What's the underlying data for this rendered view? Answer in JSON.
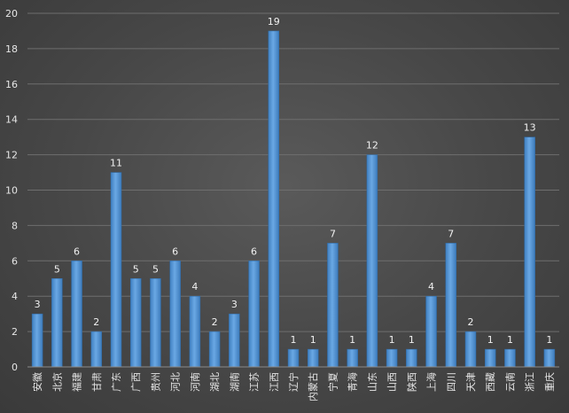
{
  "chart_data": {
    "type": "bar",
    "title": "",
    "xlabel": "",
    "ylabel": "",
    "ylim": [
      0,
      20
    ],
    "yticks": [
      0,
      2,
      4,
      6,
      8,
      10,
      12,
      14,
      16,
      18,
      20
    ],
    "grid": true,
    "legend": "none",
    "bar_color": "#5b9bd5",
    "categories": [
      "安徽",
      "北京",
      "福建",
      "甘肃",
      "广东",
      "广西",
      "贵州",
      "河北",
      "河南",
      "湖北",
      "湖南",
      "江苏",
      "江西",
      "辽宁",
      "内蒙古",
      "宁夏",
      "青海",
      "山东",
      "山西",
      "陕西",
      "上海",
      "四川",
      "天津",
      "西藏",
      "云南",
      "浙江",
      "重庆"
    ],
    "values": [
      3,
      5,
      6,
      2,
      11,
      5,
      5,
      6,
      4,
      2,
      3,
      6,
      19,
      1,
      1,
      7,
      1,
      12,
      1,
      1,
      4,
      7,
      2,
      1,
      1,
      13,
      1
    ]
  }
}
